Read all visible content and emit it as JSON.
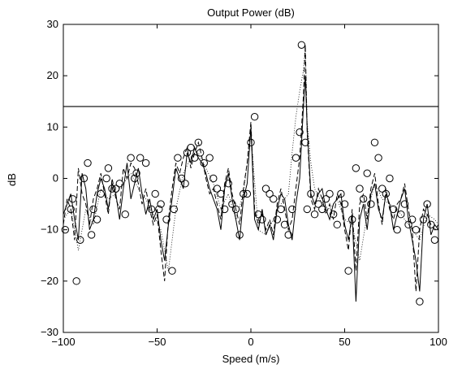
{
  "chart_data": {
    "type": "line",
    "title": "Output Power (dB)",
    "xlabel": "Speed (m/s)",
    "ylabel": "dB",
    "xlim": [
      -100,
      100
    ],
    "ylim": [
      -30,
      30
    ],
    "xticks": [
      -100,
      -50,
      0,
      50,
      100
    ],
    "yticks": [
      -30,
      -20,
      -10,
      0,
      10,
      20,
      30
    ],
    "xtick_labels": [
      "−100",
      "−50",
      "0",
      "50",
      "100"
    ],
    "ytick_labels": [
      "−30",
      "−20",
      "−10",
      "0",
      "10",
      "20",
      "30"
    ],
    "grid": false,
    "threshold": 14,
    "series": [
      {
        "style": "solid",
        "x": [
          -100,
          -98,
          -96,
          -94,
          -92,
          -90,
          -88,
          -86,
          -84,
          -82,
          -80,
          -78,
          -76,
          -74,
          -72,
          -70,
          -68,
          -66,
          -64,
          -62,
          -60,
          -58,
          -56,
          -54,
          -52,
          -50,
          -48,
          -46,
          -44,
          -42,
          -40,
          -38,
          -36,
          -34,
          -32,
          -30,
          -28,
          -26,
          -24,
          -22,
          -20,
          -18,
          -16,
          -14,
          -12,
          -10,
          -8,
          -6,
          -4,
          -2,
          0,
          2,
          4,
          6,
          8,
          10,
          12,
          14,
          16,
          18,
          20,
          22,
          24,
          26,
          28,
          29,
          30,
          32,
          34,
          36,
          38,
          40,
          42,
          44,
          46,
          48,
          50,
          52,
          54,
          56,
          58,
          60,
          62,
          64,
          66,
          68,
          70,
          72,
          74,
          76,
          78,
          80,
          82,
          84,
          86,
          88,
          90,
          92,
          94,
          96,
          98,
          100
        ],
        "values": [
          -7,
          -5,
          -3,
          -8,
          -12,
          1,
          -2,
          -10,
          -8,
          -3,
          0,
          -2,
          -6,
          -1,
          -3,
          -8,
          -2,
          3,
          -4,
          -1,
          2,
          -3,
          -7,
          -4,
          -8,
          -6,
          -12,
          -16,
          -9,
          -4,
          2,
          0,
          -2,
          5,
          3,
          6,
          4,
          3,
          1,
          -2,
          -4,
          -6,
          -10,
          -2,
          1,
          -4,
          -8,
          -12,
          -4,
          -1,
          10,
          -8,
          -10,
          -6,
          -11,
          -9,
          -12,
          -6,
          -3,
          -4,
          -9,
          -12,
          -5,
          0,
          14,
          20,
          10,
          -3,
          -5,
          -3,
          -2,
          -6,
          -8,
          -5,
          -4,
          -3,
          -9,
          -12,
          -7,
          -24,
          -8,
          -5,
          -10,
          -3,
          -1,
          -6,
          -8,
          -3,
          -5,
          -10,
          -7,
          -4,
          -2,
          -8,
          -12,
          -16,
          -22,
          -8,
          -5,
          -11,
          -9,
          -10
        ]
      },
      {
        "style": "dashed",
        "x": [
          -100,
          -98,
          -96,
          -94,
          -92,
          -90,
          -88,
          -86,
          -84,
          -82,
          -80,
          -78,
          -76,
          -74,
          -72,
          -70,
          -68,
          -66,
          -64,
          -62,
          -60,
          -58,
          -56,
          -54,
          -52,
          -50,
          -48,
          -46,
          -44,
          -42,
          -40,
          -38,
          -36,
          -34,
          -32,
          -30,
          -28,
          -26,
          -24,
          -22,
          -20,
          -18,
          -16,
          -14,
          -12,
          -10,
          -8,
          -6,
          -4,
          -2,
          0,
          2,
          4,
          6,
          8,
          10,
          12,
          14,
          16,
          18,
          20,
          22,
          24,
          26,
          28,
          29,
          30,
          32,
          34,
          36,
          38,
          40,
          42,
          44,
          46,
          48,
          50,
          52,
          54,
          56,
          58,
          60,
          62,
          64,
          66,
          68,
          70,
          72,
          74,
          76,
          78,
          80,
          82,
          84,
          86,
          88,
          90,
          92,
          94,
          96,
          98,
          100
        ],
        "values": [
          -9,
          -4,
          -6,
          -12,
          2,
          -3,
          -5,
          -9,
          -4,
          -2,
          1,
          -3,
          -7,
          0,
          -4,
          -6,
          2,
          0,
          3,
          2,
          -1,
          -5,
          -2,
          -6,
          -9,
          -7,
          -14,
          -20,
          -8,
          -2,
          3,
          1,
          4,
          6,
          2,
          5,
          7,
          4,
          0,
          -3,
          -2,
          -5,
          -8,
          -1,
          2,
          -3,
          -6,
          -9,
          -2,
          3,
          11,
          -6,
          -9,
          -7,
          -10,
          -8,
          -11,
          -5,
          -2,
          -6,
          -10,
          -8,
          -2,
          4,
          16,
          26,
          9,
          -4,
          -6,
          -2,
          -4,
          -7,
          -5,
          -8,
          -3,
          -5,
          -10,
          -14,
          -6,
          -18,
          -5,
          -3,
          -8,
          -2,
          1,
          -5,
          -9,
          -2,
          -6,
          -8,
          -5,
          -4,
          -1,
          -6,
          -10,
          -22,
          -10,
          -6,
          -7,
          -9,
          -10,
          -9
        ]
      },
      {
        "style": "dotted",
        "x": [
          -100,
          -96,
          -92,
          -88,
          -84,
          -80,
          -76,
          -72,
          -68,
          -64,
          -60,
          -56,
          -52,
          -48,
          -44,
          -40,
          -36,
          -32,
          -28,
          -24,
          -20,
          -16,
          -12,
          -8,
          -4,
          0,
          4,
          8,
          12,
          16,
          20,
          22,
          24,
          26,
          28,
          29,
          30,
          32,
          34,
          38,
          42,
          46,
          50,
          54,
          58,
          62,
          66,
          70,
          74,
          78,
          82,
          86,
          90,
          94,
          98,
          100
        ],
        "values": [
          -8,
          -6,
          -14,
          -6,
          -9,
          -2,
          -4,
          -3,
          -1,
          1,
          -2,
          -4,
          -7,
          -10,
          -18,
          -6,
          1,
          4,
          5,
          2,
          -1,
          -6,
          -3,
          -8,
          -3,
          9,
          -10,
          -11,
          -8,
          -5,
          -3,
          5,
          12,
          17,
          21,
          26,
          11,
          3,
          -2,
          -5,
          -6,
          -4,
          -8,
          -9,
          -16,
          -7,
          -1,
          -4,
          -5,
          -6,
          -8,
          -10,
          -12,
          -7,
          -8,
          -9
        ]
      },
      {
        "style": "circles",
        "x": [
          -99,
          -96,
          -95,
          -93,
          -91,
          -89,
          -87,
          -85,
          -84,
          -82,
          -80,
          -77,
          -76,
          -74,
          -72,
          -70,
          -67,
          -64,
          -62,
          -61,
          -59,
          -56,
          -53,
          -51,
          -49,
          -48,
          -45,
          -42,
          -41,
          -39,
          -37,
          -35,
          -34,
          -32,
          -30,
          -28,
          -27,
          -25,
          -22,
          -20,
          -18,
          -16,
          -14,
          -12,
          -10,
          -8,
          -6,
          -4,
          -2,
          0,
          2,
          4,
          6,
          8,
          10,
          12,
          14,
          16,
          18,
          20,
          22,
          24,
          26,
          27,
          29,
          30,
          32,
          34,
          36,
          38,
          40,
          42,
          44,
          46,
          48,
          50,
          52,
          54,
          56,
          58,
          60,
          62,
          64,
          66,
          68,
          70,
          72,
          74,
          76,
          78,
          80,
          82,
          84,
          86,
          88,
          90,
          92,
          94,
          96,
          98
        ],
        "values": [
          -10,
          -6,
          -4,
          -20,
          -12,
          0,
          3,
          -11,
          -6,
          -8,
          -3,
          0,
          2,
          -2,
          -2,
          -1,
          -7,
          4,
          0,
          1,
          4,
          3,
          -6,
          -3,
          -6,
          -5,
          -8,
          -18,
          -6,
          4,
          0,
          -1,
          5,
          6,
          4,
          7,
          5,
          3,
          4,
          0,
          -2,
          -3,
          -6,
          -1,
          -5,
          -6,
          -11,
          -3,
          -3,
          7,
          12,
          -7,
          -8,
          -2,
          -3,
          -4,
          -8,
          -6,
          -9,
          -11,
          -6,
          4,
          9,
          26,
          7,
          -6,
          -3,
          -7,
          -5,
          -6,
          -4,
          -3,
          -7,
          -9,
          -3,
          -5,
          -18,
          -8,
          2,
          -2,
          -4,
          1,
          -5,
          7,
          4,
          -2,
          -3,
          0,
          -6,
          -10,
          -7,
          -5,
          -9,
          -8,
          -10,
          -24,
          -8,
          -5,
          -9,
          -12
        ]
      }
    ]
  }
}
